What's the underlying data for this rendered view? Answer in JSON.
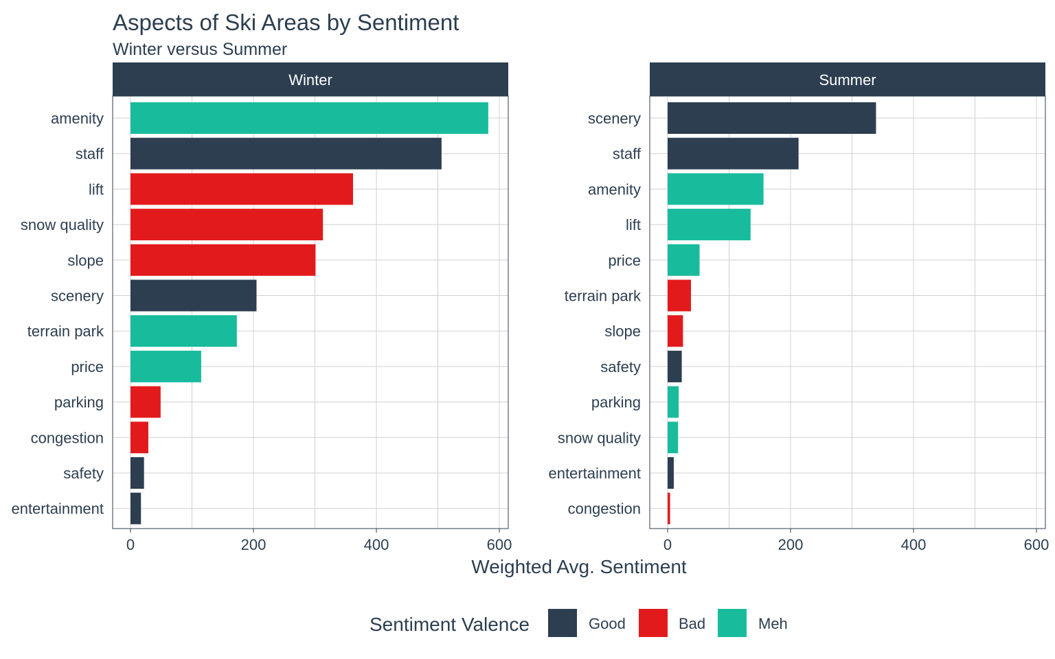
{
  "chart_data": {
    "type": "bar",
    "orientation": "horizontal",
    "title": "Aspects of Ski Areas by Sentiment",
    "subtitle": "Winter versus Summer",
    "xlabel": "Weighted Avg. Sentiment",
    "xlim": [
      0,
      600
    ],
    "xticks": [
      0,
      200,
      400,
      600
    ],
    "grid": true,
    "legend": {
      "title": "Sentiment Valence",
      "position": "bottom",
      "entries": [
        {
          "name": "Good",
          "color": "#2c3e50"
        },
        {
          "name": "Bad",
          "color": "#e31a1c"
        },
        {
          "name": "Meh",
          "color": "#18bc9c"
        }
      ]
    },
    "panels": [
      {
        "name": "Winter",
        "categories": [
          "amenity",
          "staff",
          "lift",
          "snow quality",
          "slope",
          "scenery",
          "terrain park",
          "price",
          "parking",
          "congestion",
          "safety",
          "entertainment"
        ],
        "values": [
          582,
          506,
          362,
          313,
          301,
          205,
          173,
          115,
          49,
          29,
          22,
          17
        ],
        "valence": [
          "Meh",
          "Good",
          "Bad",
          "Bad",
          "Bad",
          "Good",
          "Meh",
          "Meh",
          "Bad",
          "Bad",
          "Good",
          "Good"
        ]
      },
      {
        "name": "Summer",
        "categories": [
          "scenery",
          "staff",
          "amenity",
          "lift",
          "price",
          "terrain park",
          "slope",
          "safety",
          "parking",
          "snow quality",
          "entertainment",
          "congestion"
        ],
        "values": [
          339,
          213,
          156,
          135,
          52,
          38,
          25,
          23,
          18,
          17,
          10,
          4
        ],
        "valence": [
          "Good",
          "Good",
          "Meh",
          "Meh",
          "Meh",
          "Bad",
          "Bad",
          "Good",
          "Meh",
          "Meh",
          "Good",
          "Bad"
        ]
      }
    ]
  }
}
